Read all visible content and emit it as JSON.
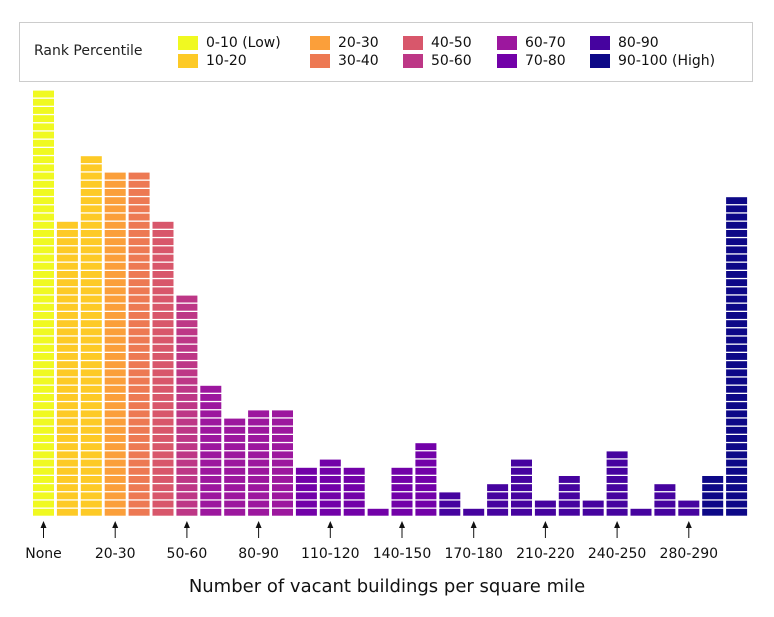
{
  "chart_data": {
    "type": "bar",
    "title": "",
    "xlabel": "Number of vacant buildings per square mile",
    "ylabel": "",
    "legend": {
      "title": "Rank Percentile",
      "placement": "top",
      "entries": [
        {
          "label": "0-10 (Low)",
          "color": "#f0f921"
        },
        {
          "label": "10-20",
          "color": "#fdca26"
        },
        {
          "label": "20-30",
          "color": "#fb9f3a"
        },
        {
          "label": "30-40",
          "color": "#ed7953"
        },
        {
          "label": "40-50",
          "color": "#d8576b"
        },
        {
          "label": "50-60",
          "color": "#bd3786"
        },
        {
          "label": "60-70",
          "color": "#9c179e"
        },
        {
          "label": "70-80",
          "color": "#7201a8"
        },
        {
          "label": "80-90",
          "color": "#46039f"
        },
        {
          "label": "90-100 (High)",
          "color": "#0d0887"
        }
      ]
    },
    "tick_labels": [
      "None",
      "20-30",
      "50-60",
      "80-90",
      "110-120",
      "140-150",
      "170-180",
      "210-220",
      "240-250",
      "280-290"
    ],
    "tick_bar_index": [
      0,
      3,
      6,
      9,
      12,
      15,
      18,
      21,
      24,
      27
    ],
    "bars": [
      {
        "value": 52,
        "group": 0
      },
      {
        "value": 36,
        "group": 1
      },
      {
        "value": 44,
        "group": 1
      },
      {
        "value": 42,
        "group": 2
      },
      {
        "value": 42,
        "group": 3
      },
      {
        "value": 36,
        "group": 4
      },
      {
        "value": 27,
        "group": 5
      },
      {
        "value": 16,
        "group": 6
      },
      {
        "value": 12,
        "group": 6
      },
      {
        "value": 13,
        "group": 6
      },
      {
        "value": 13,
        "group": 6
      },
      {
        "value": 6,
        "group": 7
      },
      {
        "value": 7,
        "group": 7
      },
      {
        "value": 6,
        "group": 7
      },
      {
        "value": 1,
        "group": 7
      },
      {
        "value": 6,
        "group": 7
      },
      {
        "value": 9,
        "group": 7
      },
      {
        "value": 3,
        "group": 8
      },
      {
        "value": 1,
        "group": 8
      },
      {
        "value": 4,
        "group": 8
      },
      {
        "value": 7,
        "group": 8
      },
      {
        "value": 2,
        "group": 8
      },
      {
        "value": 5,
        "group": 8
      },
      {
        "value": 2,
        "group": 8
      },
      {
        "value": 8,
        "group": 8
      },
      {
        "value": 1,
        "group": 8
      },
      {
        "value": 4,
        "group": 8
      },
      {
        "value": 2,
        "group": 8
      },
      {
        "value": 5,
        "group": 9
      },
      {
        "value": 39,
        "group": 9
      }
    ]
  }
}
